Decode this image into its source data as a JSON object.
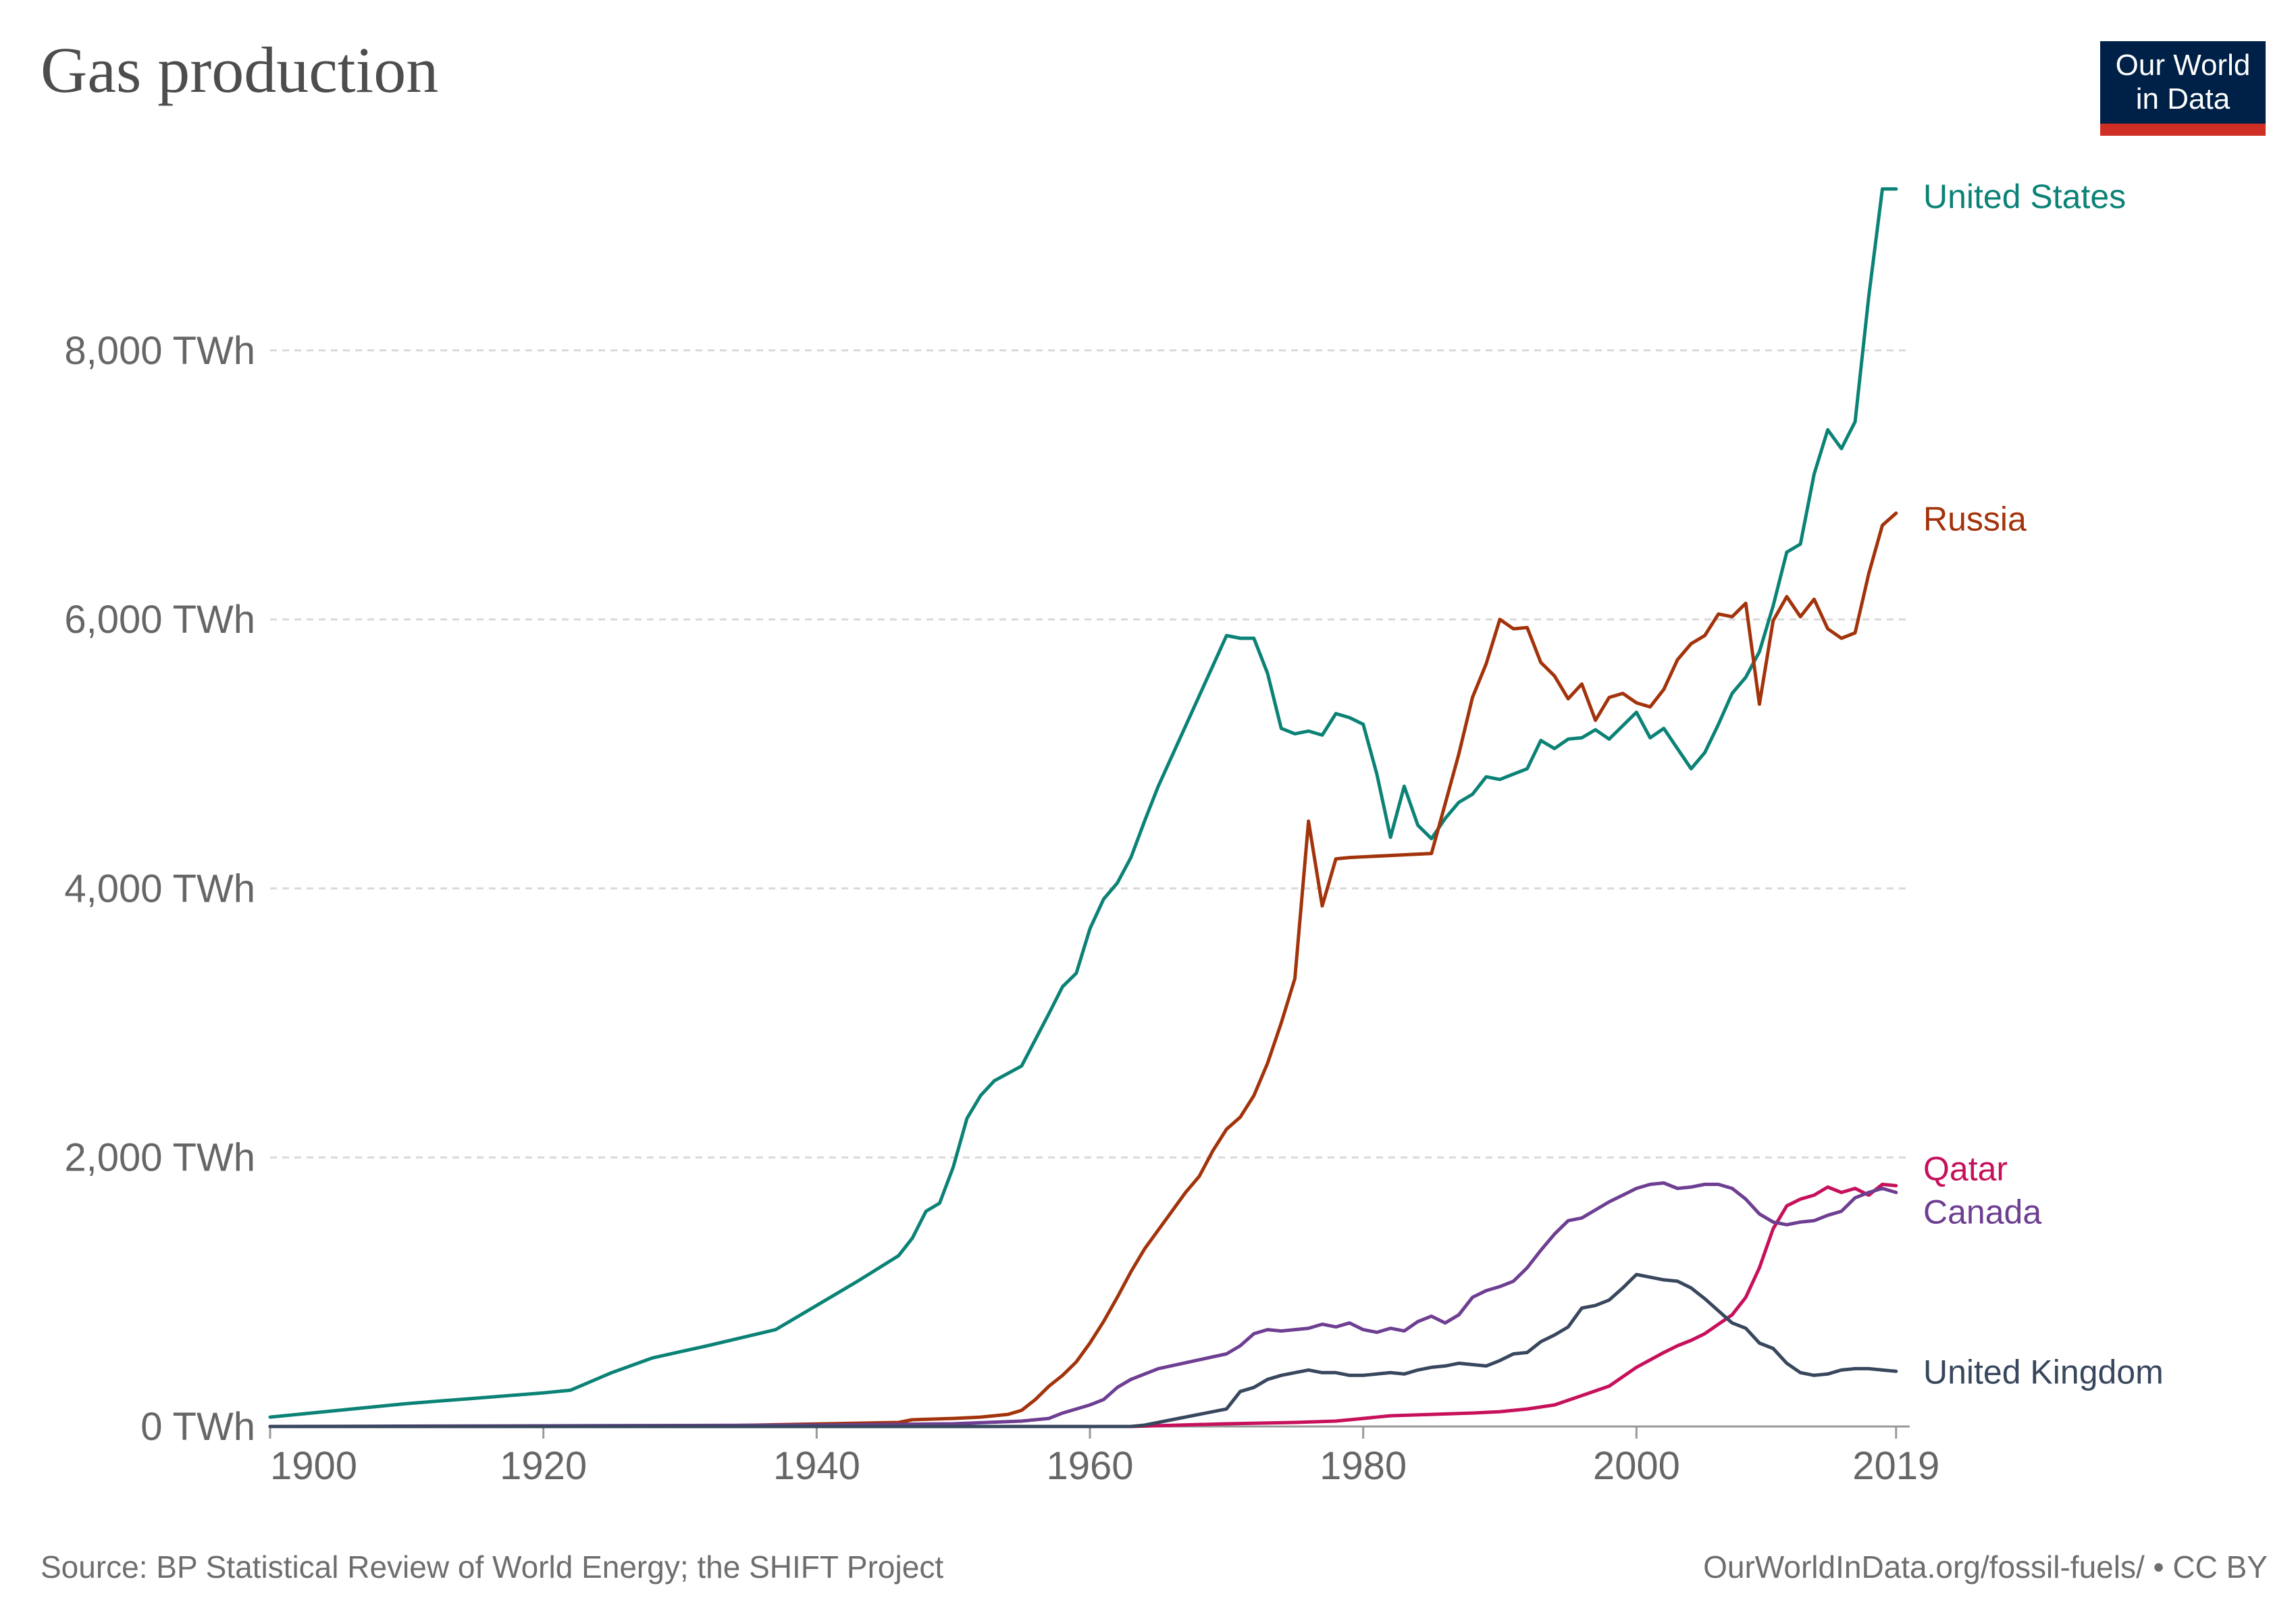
{
  "header": {
    "title": "Gas production"
  },
  "logo": {
    "line1": "Our World",
    "line2": "in Data"
  },
  "footer": {
    "source": "Source: BP Statistical Review of World Energy; the SHIFT Project",
    "url": "OurWorldInData.org/fossil-fuels/ • CC BY"
  },
  "colors": {
    "united_states": "#0b8276",
    "russia": "#a2330b",
    "qatar": "#c6105b",
    "canada": "#6d3e91",
    "united_kingdom": "#38475d",
    "grid": "#d9d9d9",
    "axis": "#999999"
  },
  "chart_data": {
    "type": "line",
    "title": "Gas production",
    "unit": "TWh",
    "xlim": [
      1900,
      2020
    ],
    "ylim": [
      0,
      9400
    ],
    "y_ticks": [
      {
        "value": 0,
        "label": "0 TWh"
      },
      {
        "value": 2000,
        "label": "2,000 TWh"
      },
      {
        "value": 4000,
        "label": "4,000 TWh"
      },
      {
        "value": 6000,
        "label": "6,000 TWh"
      },
      {
        "value": 8000,
        "label": "8,000 TWh"
      }
    ],
    "x_ticks": [
      {
        "value": 1900,
        "label": "1900"
      },
      {
        "value": 1920,
        "label": "1920"
      },
      {
        "value": 1940,
        "label": "1940"
      },
      {
        "value": 1960,
        "label": "1960"
      },
      {
        "value": 1980,
        "label": "1980"
      },
      {
        "value": 2000,
        "label": "2000"
      },
      {
        "value": 2019,
        "label": "2019"
      }
    ],
    "grid": "horizontal dashed",
    "legend": "labels at line ends (right)",
    "series": [
      {
        "name": "United States",
        "key": "united_states",
        "x": [
          1900,
          1905,
          1910,
          1915,
          1920,
          1922,
          1925,
          1928,
          1932,
          1937,
          1940,
          1943,
          1946,
          1947,
          1948,
          1949,
          1950,
          1951,
          1952,
          1953,
          1955,
          1957,
          1958,
          1959,
          1960,
          1961,
          1962,
          1963,
          1964,
          1965,
          1970,
          1971,
          1972,
          1973,
          1974,
          1975,
          1976,
          1977,
          1978,
          1979,
          1980,
          1981,
          1982,
          1983,
          1984,
          1985,
          1986,
          1987,
          1988,
          1989,
          1990,
          1991,
          1992,
          1993,
          1994,
          1995,
          1996,
          1997,
          1998,
          1999,
          2000,
          2001,
          2002,
          2003,
          2004,
          2005,
          2006,
          2007,
          2008,
          2009,
          2010,
          2011,
          2012,
          2013,
          2014,
          2015,
          2016,
          2017,
          2018,
          2019
        ],
        "y": [
          70,
          120,
          170,
          210,
          250,
          270,
          400,
          510,
          600,
          720,
          900,
          1080,
          1270,
          1400,
          1600,
          1660,
          1930,
          2290,
          2460,
          2570,
          2680,
          3070,
          3270,
          3370,
          3700,
          3920,
          4040,
          4230,
          4500,
          4760,
          5880,
          5860,
          5860,
          5600,
          5190,
          5150,
          5170,
          5140,
          5300,
          5270,
          5220,
          4850,
          4380,
          4760,
          4470,
          4370,
          4520,
          4640,
          4700,
          4830,
          4810,
          4850,
          4890,
          5100,
          5040,
          5110,
          5120,
          5180,
          5110,
          5210,
          5310,
          5120,
          5190,
          5040,
          4890,
          5010,
          5220,
          5450,
          5570,
          5760,
          6100,
          6500,
          6560,
          7080,
          7410,
          7270,
          7470,
          8400,
          9200,
          9200
        ],
        "label_value": 9150
      },
      {
        "name": "Russia",
        "key": "russia",
        "x": [
          1900,
          1930,
          1946,
          1947,
          1950,
          1952,
          1954,
          1955,
          1956,
          1957,
          1958,
          1959,
          1960,
          1961,
          1962,
          1963,
          1964,
          1965,
          1966,
          1967,
          1968,
          1969,
          1970,
          1971,
          1972,
          1973,
          1974,
          1975,
          1976,
          1977,
          1978,
          1979,
          1985,
          1986,
          1987,
          1988,
          1989,
          1990,
          1991,
          1992,
          1993,
          1994,
          1995,
          1996,
          1997,
          1998,
          1999,
          2000,
          2001,
          2002,
          2003,
          2004,
          2005,
          2006,
          2007,
          2008,
          2009,
          2010,
          2011,
          2012,
          2013,
          2014,
          2015,
          2016,
          2017,
          2018,
          2019
        ],
        "y": [
          0,
          0,
          30,
          50,
          60,
          70,
          90,
          120,
          200,
          300,
          380,
          480,
          620,
          780,
          960,
          1150,
          1320,
          1460,
          1600,
          1740,
          1860,
          2050,
          2210,
          2300,
          2460,
          2700,
          3000,
          3330,
          4500,
          3870,
          4220,
          4230,
          4260,
          4630,
          5000,
          5420,
          5670,
          6000,
          5930,
          5940,
          5680,
          5580,
          5410,
          5520,
          5250,
          5420,
          5450,
          5380,
          5350,
          5480,
          5700,
          5820,
          5880,
          6040,
          6020,
          6120,
          5370,
          5990,
          6170,
          6020,
          6150,
          5930,
          5860,
          5900,
          6340,
          6700,
          6790
        ],
        "label_value": 6750
      },
      {
        "name": "Qatar",
        "key": "qatar",
        "x": [
          1963,
          1970,
          1975,
          1978,
          1980,
          1982,
          1985,
          1988,
          1990,
          1992,
          1994,
          1996,
          1998,
          2000,
          2002,
          2003,
          2004,
          2005,
          2006,
          2007,
          2008,
          2009,
          2010,
          2011,
          2012,
          2013,
          2014,
          2015,
          2016,
          2017,
          2018,
          2019
        ],
        "y": [
          0,
          20,
          30,
          40,
          60,
          80,
          90,
          100,
          110,
          130,
          160,
          230,
          300,
          440,
          550,
          600,
          640,
          690,
          760,
          830,
          960,
          1180,
          1470,
          1640,
          1690,
          1720,
          1780,
          1740,
          1770,
          1720,
          1800,
          1790
        ],
        "label_value": 1920
      },
      {
        "name": "Canada",
        "key": "canada",
        "x": [
          1900,
          1940,
          1950,
          1955,
          1957,
          1958,
          1959,
          1960,
          1961,
          1962,
          1963,
          1965,
          1970,
          1971,
          1972,
          1973,
          1974,
          1975,
          1976,
          1977,
          1978,
          1979,
          1980,
          1981,
          1982,
          1983,
          1984,
          1985,
          1986,
          1987,
          1988,
          1989,
          1990,
          1991,
          1992,
          1993,
          1994,
          1995,
          1996,
          1997,
          1998,
          1999,
          2000,
          2001,
          2002,
          2003,
          2004,
          2005,
          2006,
          2007,
          2008,
          2009,
          2010,
          2011,
          2012,
          2013,
          2014,
          2015,
          2016,
          2017,
          2018,
          2019
        ],
        "y": [
          0,
          10,
          20,
          40,
          60,
          100,
          130,
          160,
          200,
          290,
          350,
          430,
          540,
          600,
          690,
          720,
          710,
          720,
          730,
          760,
          740,
          770,
          720,
          700,
          730,
          710,
          780,
          820,
          770,
          830,
          960,
          1010,
          1040,
          1080,
          1180,
          1310,
          1430,
          1530,
          1550,
          1610,
          1670,
          1720,
          1770,
          1800,
          1810,
          1770,
          1780,
          1800,
          1800,
          1770,
          1690,
          1580,
          1520,
          1500,
          1520,
          1530,
          1570,
          1600,
          1700,
          1740,
          1770,
          1740
        ],
        "label_value": 1600
      },
      {
        "name": "United Kingdom",
        "key": "united_kingdom",
        "x": [
          1900,
          1963,
          1964,
          1966,
          1970,
          1971,
          1972,
          1973,
          1974,
          1975,
          1976,
          1977,
          1978,
          1979,
          1980,
          1981,
          1982,
          1983,
          1984,
          1985,
          1986,
          1987,
          1988,
          1989,
          1990,
          1991,
          1992,
          1993,
          1994,
          1995,
          1996,
          1997,
          1998,
          1999,
          2000,
          2001,
          2002,
          2003,
          2004,
          2005,
          2006,
          2007,
          2008,
          2009,
          2010,
          2011,
          2012,
          2013,
          2014,
          2015,
          2016,
          2017,
          2018,
          2019
        ],
        "y": [
          0,
          0,
          10,
          50,
          130,
          260,
          290,
          350,
          380,
          400,
          420,
          400,
          400,
          380,
          380,
          390,
          400,
          390,
          420,
          440,
          450,
          470,
          460,
          450,
          490,
          540,
          550,
          630,
          680,
          740,
          880,
          900,
          940,
          1030,
          1130,
          1110,
          1090,
          1080,
          1030,
          950,
          860,
          770,
          730,
          620,
          580,
          470,
          400,
          380,
          390,
          420,
          430,
          430,
          420,
          410
        ],
        "label_value": 410
      }
    ]
  }
}
